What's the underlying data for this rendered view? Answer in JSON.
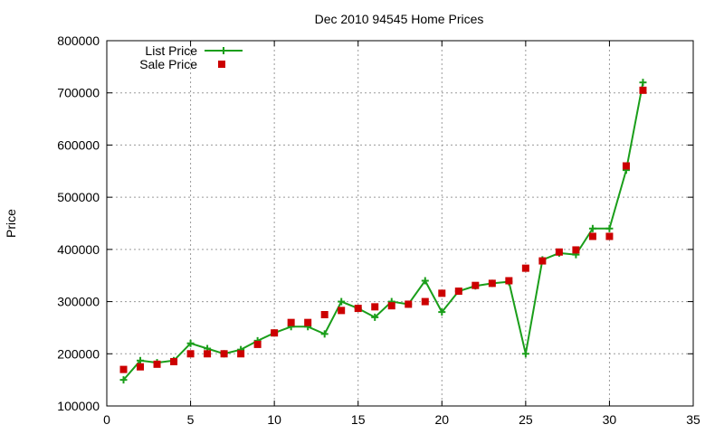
{
  "chart_data": {
    "type": "line",
    "title": "Dec 2010 94545 Home Prices",
    "xlabel": "",
    "ylabel": "Price",
    "xlim": [
      0,
      35
    ],
    "ylim": [
      100000,
      800000
    ],
    "xticks": [
      "0",
      "5",
      "10",
      "15",
      "20",
      "25",
      "30",
      "35"
    ],
    "yticks": [
      "100000",
      "200000",
      "300000",
      "400000",
      "500000",
      "600000",
      "700000",
      "800000"
    ],
    "grid": true,
    "legend_position": "top-left",
    "series": [
      {
        "name": "List Price",
        "style": "line+cross",
        "color": "#1a9e1a",
        "x": [
          1,
          2,
          3,
          4,
          5,
          6,
          7,
          8,
          9,
          10,
          11,
          12,
          13,
          14,
          15,
          16,
          17,
          18,
          19,
          20,
          21,
          22,
          23,
          24,
          25,
          26,
          27,
          28,
          29,
          30,
          31,
          32
        ],
        "values": [
          150000,
          187000,
          183000,
          187000,
          220000,
          210000,
          200000,
          208000,
          225000,
          240000,
          252000,
          252000,
          238000,
          300000,
          287000,
          270000,
          300000,
          295000,
          340000,
          280000,
          320000,
          330000,
          335000,
          338000,
          200000,
          380000,
          393000,
          390000,
          440000,
          440000,
          552000,
          720000
        ]
      },
      {
        "name": "Sale Price",
        "style": "square",
        "color": "#cc0000",
        "x": [
          1,
          2,
          3,
          4,
          5,
          6,
          7,
          8,
          9,
          10,
          11,
          12,
          13,
          14,
          15,
          16,
          17,
          18,
          19,
          20,
          21,
          22,
          23,
          24,
          25,
          26,
          27,
          28,
          29,
          30,
          31,
          32
        ],
        "values": [
          170000,
          175000,
          180000,
          185000,
          200000,
          200000,
          200000,
          200000,
          218000,
          240000,
          260000,
          260000,
          275000,
          283000,
          287000,
          290000,
          292000,
          295000,
          300000,
          316000,
          320000,
          331000,
          335000,
          340000,
          364000,
          378000,
          395000,
          399000,
          425000,
          425000,
          560000,
          705000
        ]
      }
    ]
  }
}
